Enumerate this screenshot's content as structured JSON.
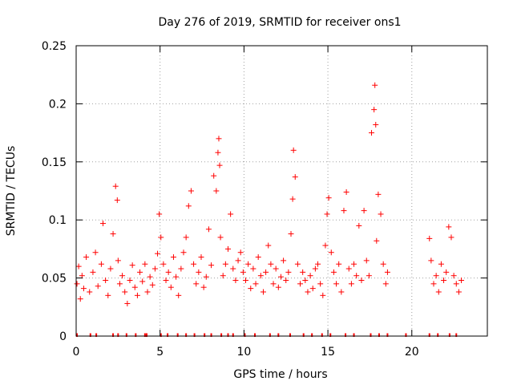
{
  "chart_data": {
    "type": "scatter",
    "title": "Day 276 of 2019, SRMTID for receiver ons1",
    "xlabel": "GPS time / hours",
    "ylabel": "SRMTID / TECUs",
    "xlim": [
      0,
      24.5
    ],
    "ylim": [
      0,
      0.25
    ],
    "x_ticks": [
      0,
      5,
      10,
      15,
      20
    ],
    "x_tick_labels": [
      "0",
      "5",
      "10",
      "15",
      "20"
    ],
    "y_ticks": [
      0,
      0.05,
      0.1,
      0.15,
      0.2,
      0.25
    ],
    "y_tick_labels": [
      "0",
      "0.05",
      "0.1",
      "0.15",
      "0.2",
      "0.25"
    ],
    "grid": true,
    "marker": "+",
    "series": [
      {
        "name": "SRMTID",
        "color": "#ff0000",
        "x": [
          0.05,
          0.15,
          0.25,
          0.35,
          0.45,
          0.6,
          0.8,
          1.0,
          1.15,
          1.3,
          1.5,
          1.6,
          1.75,
          1.9,
          2.05,
          2.2,
          2.35,
          2.45,
          2.5,
          2.6,
          2.75,
          2.9,
          3.05,
          3.2,
          3.35,
          3.5,
          3.65,
          3.8,
          3.95,
          4.1,
          4.25,
          4.4,
          4.55,
          4.7,
          4.85,
          4.95,
          5.05,
          5.2,
          5.35,
          5.5,
          5.65,
          5.8,
          5.95,
          6.1,
          6.25,
          6.4,
          6.55,
          6.7,
          6.85,
          7.0,
          7.15,
          7.3,
          7.45,
          7.6,
          7.75,
          7.9,
          8.05,
          8.2,
          8.35,
          8.45,
          8.5,
          8.55,
          8.6,
          8.75,
          8.9,
          9.05,
          9.2,
          9.35,
          9.5,
          9.65,
          9.8,
          9.95,
          10.1,
          10.25,
          10.4,
          10.55,
          10.7,
          10.85,
          11.0,
          11.15,
          11.3,
          11.45,
          11.6,
          11.75,
          11.9,
          12.05,
          12.2,
          12.35,
          12.5,
          12.65,
          12.8,
          12.9,
          12.95,
          13.05,
          13.2,
          13.35,
          13.5,
          13.65,
          13.8,
          13.95,
          14.1,
          14.25,
          14.4,
          14.55,
          14.7,
          14.85,
          14.95,
          15.05,
          15.2,
          15.35,
          15.5,
          15.65,
          15.8,
          15.95,
          16.1,
          16.25,
          16.4,
          16.55,
          16.7,
          16.85,
          17.0,
          17.15,
          17.3,
          17.45,
          17.6,
          17.75,
          17.8,
          17.85,
          17.9,
          18.0,
          18.15,
          18.3,
          18.45,
          18.55,
          21.05,
          21.15,
          21.3,
          21.45,
          21.6,
          21.75,
          21.9,
          22.05,
          22.2,
          22.35,
          22.5,
          22.65,
          22.8,
          22.95
        ],
        "y": [
          0.045,
          0.06,
          0.032,
          0.052,
          0.041,
          0.068,
          0.038,
          0.055,
          0.072,
          0.043,
          0.062,
          0.097,
          0.048,
          0.035,
          0.058,
          0.088,
          0.129,
          0.117,
          0.065,
          0.045,
          0.052,
          0.038,
          0.028,
          0.048,
          0.061,
          0.042,
          0.035,
          0.055,
          0.047,
          0.062,
          0.038,
          0.051,
          0.044,
          0.058,
          0.071,
          0.105,
          0.085,
          0.062,
          0.048,
          0.055,
          0.042,
          0.068,
          0.051,
          0.035,
          0.058,
          0.072,
          0.085,
          0.112,
          0.125,
          0.062,
          0.045,
          0.055,
          0.068,
          0.042,
          0.051,
          0.092,
          0.061,
          0.138,
          0.125,
          0.158,
          0.17,
          0.147,
          0.085,
          0.052,
          0.062,
          0.075,
          0.105,
          0.058,
          0.048,
          0.065,
          0.072,
          0.055,
          0.048,
          0.062,
          0.041,
          0.058,
          0.045,
          0.068,
          0.052,
          0.038,
          0.055,
          0.078,
          0.062,
          0.045,
          0.058,
          0.042,
          0.051,
          0.065,
          0.048,
          0.055,
          0.088,
          0.118,
          0.16,
          0.137,
          0.062,
          0.045,
          0.055,
          0.048,
          0.038,
          0.052,
          0.041,
          0.058,
          0.062,
          0.045,
          0.035,
          0.078,
          0.105,
          0.119,
          0.072,
          0.055,
          0.045,
          0.062,
          0.038,
          0.108,
          0.124,
          0.058,
          0.045,
          0.062,
          0.052,
          0.095,
          0.048,
          0.108,
          0.065,
          0.052,
          0.175,
          0.195,
          0.216,
          0.182,
          0.082,
          0.122,
          0.105,
          0.062,
          0.045,
          0.055,
          0.084,
          0.065,
          0.045,
          0.052,
          0.038,
          0.062,
          0.048,
          0.055,
          0.094,
          0.085,
          0.052,
          0.045,
          0.038,
          0.048
        ]
      }
    ],
    "zero_markers": [
      0.05,
      0.85,
      1.2,
      2.2,
      2.5,
      3.0,
      3.55,
      4.1,
      4.2,
      5.05,
      5.45,
      6.05,
      6.55,
      7.05,
      7.65,
      8.05,
      8.65,
      9.05,
      9.35,
      10.05,
      10.65,
      11.55,
      12.05,
      12.75,
      13.55,
      14.05,
      14.65,
      15.15,
      16.05,
      16.55,
      17.55,
      18.05,
      18.55,
      19.65,
      21.05,
      21.55,
      22.25,
      22.65
    ]
  }
}
